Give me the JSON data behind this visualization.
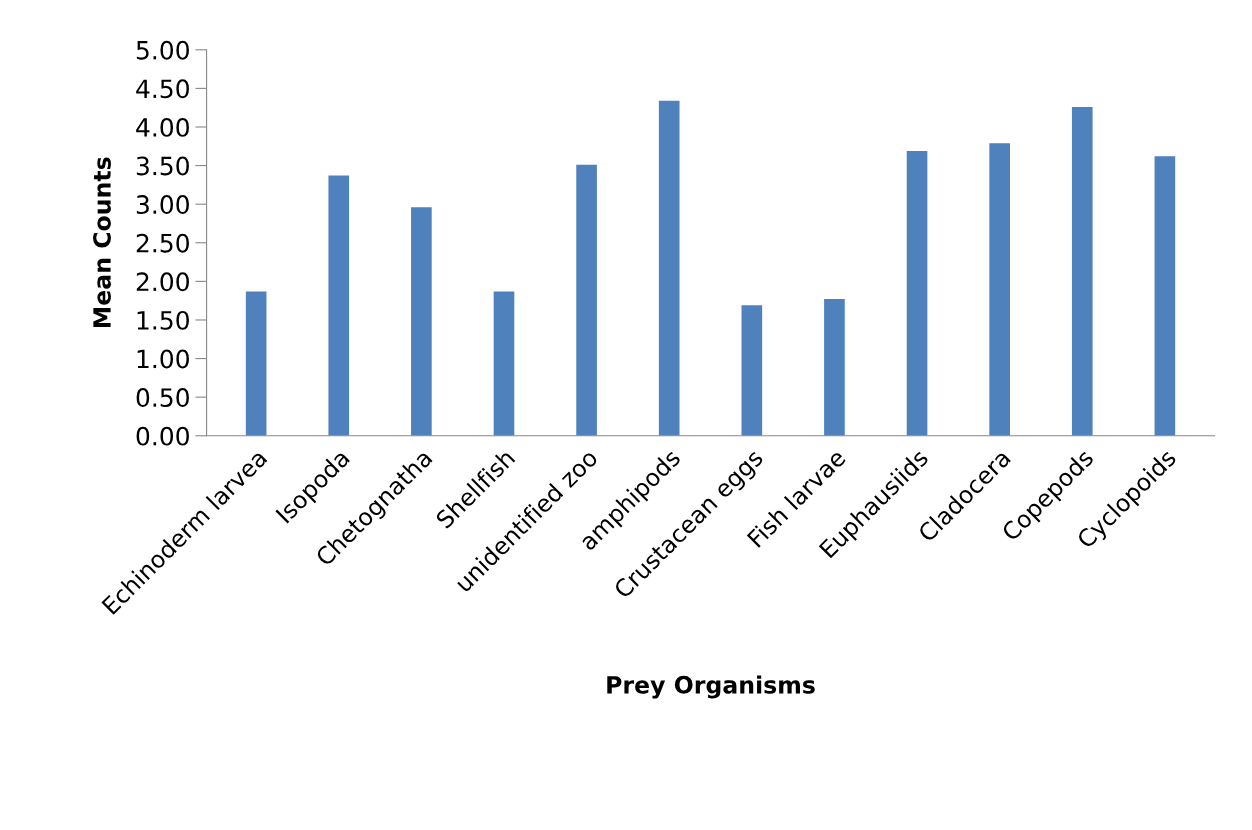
{
  "chart_data": {
    "type": "bar",
    "xlabel": "Prey Organisms",
    "ylabel": "Mean Counts",
    "categories": [
      "Echinoderm larvea",
      "Isopoda",
      "Chetognatha",
      "Shellfish",
      "unidentified zoo",
      "amphipods",
      "Crustacean eggs",
      "Fish larvae",
      "Euphausiids",
      "Cladocera",
      "Copepods",
      "Cyclopoids"
    ],
    "values": [
      1.87,
      3.37,
      2.96,
      1.87,
      3.51,
      4.34,
      1.69,
      1.77,
      3.69,
      3.79,
      4.26,
      3.62
    ],
    "color": "#4f81bd",
    "ylim": [
      0,
      5
    ],
    "yticks": [
      {
        "value": 0,
        "label": "0.00"
      },
      {
        "value": 0.5,
        "label": "0.50"
      },
      {
        "value": 1,
        "label": "1.00"
      },
      {
        "value": 1.5,
        "label": "1.50"
      },
      {
        "value": 2,
        "label": "2.00"
      },
      {
        "value": 2.5,
        "label": "2.50"
      },
      {
        "value": 3,
        "label": "3.00"
      },
      {
        "value": 3.5,
        "label": "3.50"
      },
      {
        "value": 4,
        "label": "4.00"
      },
      {
        "value": 4.5,
        "label": "4.50"
      },
      {
        "value": 5,
        "label": "5.00"
      }
    ],
    "grid": false
  }
}
